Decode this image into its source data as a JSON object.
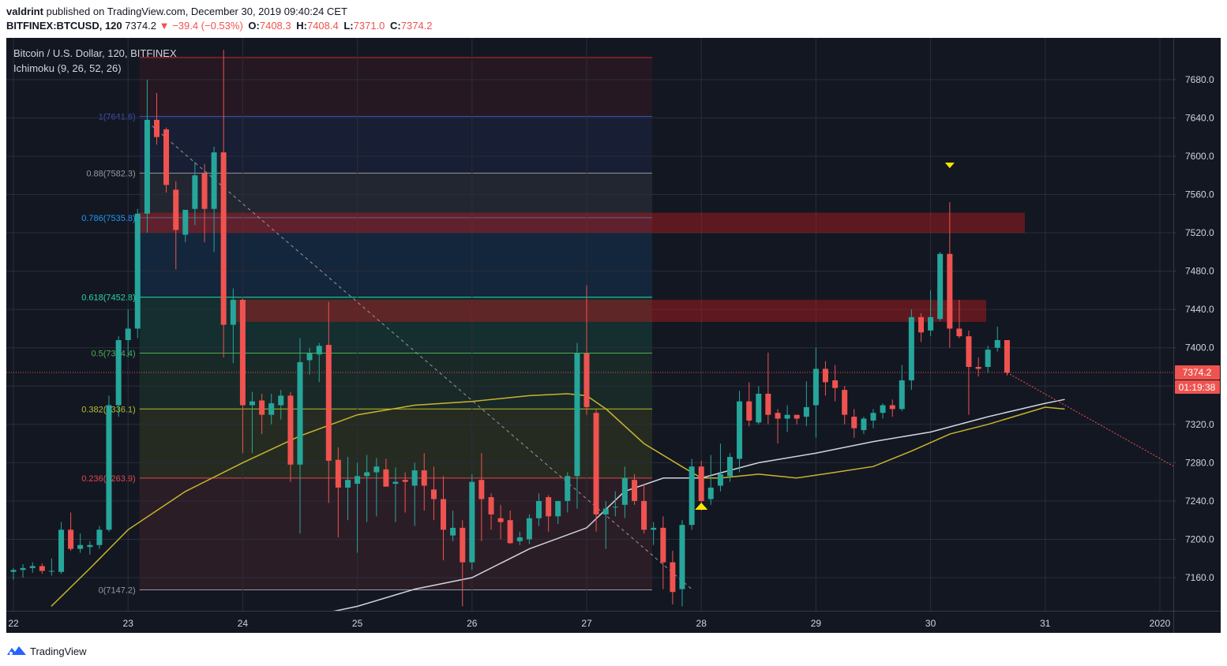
{
  "header": {
    "user": "valdrint",
    "published": "published on TradingView.com, December 30, 2019 09:40:24 CET",
    "symbol": "BITFINEX:BTCUSD, 120",
    "last": "7374.2",
    "change_arrow": "▼",
    "change": "−39.4 (−0.53%)",
    "o_label": "O:",
    "o": "7408.3",
    "h_label": "H:",
    "h": "7408.4",
    "l_label": "L:",
    "l": "7371.0",
    "c_label": "C:",
    "c": "7374.2"
  },
  "legend": {
    "title": "Bitcoin / U.S. Dollar, 120, BITFINEX",
    "indicator": "Ichimoku (9, 26, 52, 26)"
  },
  "footer": {
    "brand": "TradingView",
    "icon": "tradingview-logo-icon"
  },
  "colors": {
    "background": "#131722",
    "up": "#26a69a",
    "down": "#ef5350",
    "grid": "#2a2e39",
    "axis_text": "#d1d4dc",
    "ma_white": "#d1d4dc",
    "ma_yellow": "#c9b42c",
    "marker": "#ffe600"
  },
  "chart_data": {
    "type": "candlestick",
    "timeframe": "120",
    "x_labels": [
      "22",
      "23",
      "24",
      "25",
      "26",
      "27",
      "28",
      "29",
      "30",
      "31",
      "2020"
    ],
    "y_ticks": [
      7160,
      7200,
      7240,
      7280,
      7320,
      7360,
      7400,
      7440,
      7480,
      7520,
      7560,
      7600,
      7640,
      7680
    ],
    "y_tick_labels": [
      "7160.0",
      "7200.0",
      "7240.0",
      "7280.0",
      "7320.0",
      "7360.0",
      "7400.0",
      "7440.0",
      "7480.0",
      "7520.0",
      "7560.0",
      "7600.0",
      "7640.0",
      "7680.0"
    ],
    "ylim": [
      7120,
      7720
    ],
    "last_price": 7374.2,
    "last_price_label": "7374.2",
    "countdown": "01:19:38",
    "fib_levels": [
      {
        "ratio": "1",
        "price": 7641.6,
        "label": "1(7641.6)",
        "color": "#3f4fb8"
      },
      {
        "ratio": "0.88",
        "price": 7582.3,
        "label": "0.88(7582.3)",
        "color": "#9598a1"
      },
      {
        "ratio": "0.786",
        "price": 7535.8,
        "label": "0.786(7535.8)",
        "color": "#2196f3"
      },
      {
        "ratio": "0.618",
        "price": 7452.8,
        "label": "0.618(7452.8)",
        "color": "#26d8a0"
      },
      {
        "ratio": "0.5",
        "price": 7394.4,
        "label": "0.5(7394.4)",
        "color": "#4caf50"
      },
      {
        "ratio": "0.382",
        "price": 7336.1,
        "label": "0.382(7336.1)",
        "color": "#b5bd2c"
      },
      {
        "ratio": "0.236",
        "price": 7263.9,
        "label": "0.236(7263.9)",
        "color": "#e04848"
      },
      {
        "ratio": "0",
        "price": 7147.2,
        "label": "0(7147.2)",
        "color": "#9598a1"
      }
    ],
    "resistance_zones": [
      {
        "low": 7520,
        "high": 7541
      },
      {
        "low": 7427,
        "high": 7450
      }
    ],
    "candles": [
      {
        "t": 22.0,
        "o": 7166,
        "h": 7170,
        "l": 7158,
        "c": 7168
      },
      {
        "t": 22.083,
        "o": 7168,
        "h": 7174,
        "l": 7160,
        "c": 7170
      },
      {
        "t": 22.167,
        "o": 7170,
        "h": 7176,
        "l": 7165,
        "c": 7172
      },
      {
        "t": 22.25,
        "o": 7172,
        "h": 7175,
        "l": 7164,
        "c": 7167
      },
      {
        "t": 22.333,
        "o": 7167,
        "h": 7180,
        "l": 7162,
        "c": 7167
      },
      {
        "t": 22.417,
        "o": 7166,
        "h": 7218,
        "l": 7164,
        "c": 7210
      },
      {
        "t": 22.5,
        "o": 7210,
        "h": 7228,
        "l": 7188,
        "c": 7190
      },
      {
        "t": 22.583,
        "o": 7190,
        "h": 7206,
        "l": 7186,
        "c": 7194
      },
      {
        "t": 22.667,
        "o": 7192,
        "h": 7198,
        "l": 7184,
        "c": 7194
      },
      {
        "t": 22.75,
        "o": 7194,
        "h": 7214,
        "l": 7190,
        "c": 7210
      },
      {
        "t": 22.833,
        "o": 7210,
        "h": 7350,
        "l": 7208,
        "c": 7340
      },
      {
        "t": 22.917,
        "o": 7340,
        "h": 7412,
        "l": 7328,
        "c": 7408
      },
      {
        "t": 23.0,
        "o": 7408,
        "h": 7440,
        "l": 7390,
        "c": 7420
      },
      {
        "t": 23.083,
        "o": 7420,
        "h": 7545,
        "l": 7410,
        "c": 7540
      },
      {
        "t": 23.167,
        "o": 7540,
        "h": 7680,
        "l": 7520,
        "c": 7638
      },
      {
        "t": 23.25,
        "o": 7638,
        "h": 7666,
        "l": 7612,
        "c": 7620
      },
      {
        "t": 23.333,
        "o": 7628,
        "h": 7630,
        "l": 7562,
        "c": 7570
      },
      {
        "t": 23.417,
        "o": 7565,
        "h": 7574,
        "l": 7482,
        "c": 7523
      },
      {
        "t": 23.5,
        "o": 7518,
        "h": 7540,
        "l": 7510,
        "c": 7544
      },
      {
        "t": 23.583,
        "o": 7545,
        "h": 7594,
        "l": 7528,
        "c": 7580
      },
      {
        "t": 23.667,
        "o": 7582,
        "h": 7592,
        "l": 7510,
        "c": 7545
      },
      {
        "t": 23.75,
        "o": 7545,
        "h": 7610,
        "l": 7500,
        "c": 7604
      },
      {
        "t": 23.833,
        "o": 7604,
        "h": 7711,
        "l": 7390,
        "c": 7424
      },
      {
        "t": 23.917,
        "o": 7424,
        "h": 7462,
        "l": 7384,
        "c": 7450
      },
      {
        "t": 24.0,
        "o": 7450,
        "h": 7452,
        "l": 7290,
        "c": 7340
      },
      {
        "t": 24.083,
        "o": 7340,
        "h": 7354,
        "l": 7290,
        "c": 7344
      },
      {
        "t": 24.167,
        "o": 7345,
        "h": 7352,
        "l": 7310,
        "c": 7330
      },
      {
        "t": 24.25,
        "o": 7330,
        "h": 7352,
        "l": 7320,
        "c": 7342
      },
      {
        "t": 24.333,
        "o": 7340,
        "h": 7356,
        "l": 7325,
        "c": 7350
      },
      {
        "t": 24.417,
        "o": 7350,
        "h": 7354,
        "l": 7260,
        "c": 7278
      },
      {
        "t": 24.5,
        "o": 7278,
        "h": 7410,
        "l": 7206,
        "c": 7385
      },
      {
        "t": 24.583,
        "o": 7387,
        "h": 7400,
        "l": 7372,
        "c": 7394
      },
      {
        "t": 24.667,
        "o": 7393,
        "h": 7405,
        "l": 7364,
        "c": 7402
      },
      {
        "t": 24.75,
        "o": 7403,
        "h": 7448,
        "l": 7238,
        "c": 7282
      },
      {
        "t": 24.833,
        "o": 7283,
        "h": 7296,
        "l": 7202,
        "c": 7254
      },
      {
        "t": 24.917,
        "o": 7254,
        "h": 7286,
        "l": 7220,
        "c": 7262
      },
      {
        "t": 25.0,
        "o": 7258,
        "h": 7280,
        "l": 7186,
        "c": 7266
      },
      {
        "t": 25.083,
        "o": 7266,
        "h": 7288,
        "l": 7218,
        "c": 7270
      },
      {
        "t": 25.167,
        "o": 7270,
        "h": 7285,
        "l": 7224,
        "c": 7276
      },
      {
        "t": 25.25,
        "o": 7273,
        "h": 7284,
        "l": 7256,
        "c": 7255
      },
      {
        "t": 25.333,
        "o": 7258,
        "h": 7275,
        "l": 7218,
        "c": 7260
      },
      {
        "t": 25.417,
        "o": 7262,
        "h": 7270,
        "l": 7228,
        "c": 7260
      },
      {
        "t": 25.5,
        "o": 7256,
        "h": 7280,
        "l": 7214,
        "c": 7272
      },
      {
        "t": 25.583,
        "o": 7272,
        "h": 7290,
        "l": 7230,
        "c": 7256
      },
      {
        "t": 25.667,
        "o": 7252,
        "h": 7276,
        "l": 7220,
        "c": 7242
      },
      {
        "t": 25.75,
        "o": 7242,
        "h": 7266,
        "l": 7178,
        "c": 7210
      },
      {
        "t": 25.833,
        "o": 7204,
        "h": 7230,
        "l": 7198,
        "c": 7212
      },
      {
        "t": 25.917,
        "o": 7212,
        "h": 7220,
        "l": 7130,
        "c": 7176
      },
      {
        "t": 26.0,
        "o": 7176,
        "h": 7268,
        "l": 7168,
        "c": 7260
      },
      {
        "t": 26.083,
        "o": 7262,
        "h": 7290,
        "l": 7198,
        "c": 7242
      },
      {
        "t": 26.167,
        "o": 7244,
        "h": 7248,
        "l": 7210,
        "c": 7226
      },
      {
        "t": 26.25,
        "o": 7222,
        "h": 7236,
        "l": 7200,
        "c": 7218
      },
      {
        "t": 26.333,
        "o": 7220,
        "h": 7230,
        "l": 7195,
        "c": 7196
      },
      {
        "t": 26.417,
        "o": 7198,
        "h": 7208,
        "l": 7194,
        "c": 7202
      },
      {
        "t": 26.5,
        "o": 7200,
        "h": 7226,
        "l": 7195,
        "c": 7222
      },
      {
        "t": 26.583,
        "o": 7222,
        "h": 7248,
        "l": 7214,
        "c": 7240
      },
      {
        "t": 26.667,
        "o": 7244,
        "h": 7246,
        "l": 7208,
        "c": 7224
      },
      {
        "t": 26.75,
        "o": 7224,
        "h": 7238,
        "l": 7216,
        "c": 7240
      },
      {
        "t": 26.833,
        "o": 7240,
        "h": 7270,
        "l": 7228,
        "c": 7266
      },
      {
        "t": 26.917,
        "o": 7266,
        "h": 7405,
        "l": 7232,
        "c": 7394
      },
      {
        "t": 27.0,
        "o": 7394,
        "h": 7465,
        "l": 7330,
        "c": 7338
      },
      {
        "t": 27.083,
        "o": 7332,
        "h": 7336,
        "l": 7208,
        "c": 7226
      },
      {
        "t": 27.167,
        "o": 7226,
        "h": 7240,
        "l": 7190,
        "c": 7232
      },
      {
        "t": 27.25,
        "o": 7234,
        "h": 7250,
        "l": 7224,
        "c": 7234
      },
      {
        "t": 27.333,
        "o": 7236,
        "h": 7276,
        "l": 7222,
        "c": 7264
      },
      {
        "t": 27.417,
        "o": 7262,
        "h": 7268,
        "l": 7236,
        "c": 7240
      },
      {
        "t": 27.5,
        "o": 7240,
        "h": 7258,
        "l": 7206,
        "c": 7210
      },
      {
        "t": 27.583,
        "o": 7210,
        "h": 7218,
        "l": 7194,
        "c": 7212
      },
      {
        "t": 27.667,
        "o": 7212,
        "h": 7224,
        "l": 7148,
        "c": 7176
      },
      {
        "t": 27.75,
        "o": 7176,
        "h": 7188,
        "l": 7132,
        "c": 7145
      },
      {
        "t": 27.833,
        "o": 7148,
        "h": 7220,
        "l": 7130,
        "c": 7215
      },
      {
        "t": 27.917,
        "o": 7215,
        "h": 7284,
        "l": 7210,
        "c": 7276
      },
      {
        "t": 28.0,
        "o": 7276,
        "h": 7282,
        "l": 7230,
        "c": 7240
      },
      {
        "t": 28.083,
        "o": 7242,
        "h": 7288,
        "l": 7236,
        "c": 7254
      },
      {
        "t": 28.167,
        "o": 7256,
        "h": 7300,
        "l": 7250,
        "c": 7268
      },
      {
        "t": 28.25,
        "o": 7266,
        "h": 7290,
        "l": 7260,
        "c": 7286
      },
      {
        "t": 28.333,
        "o": 7284,
        "h": 7355,
        "l": 7270,
        "c": 7344
      },
      {
        "t": 28.417,
        "o": 7344,
        "h": 7364,
        "l": 7318,
        "c": 7324
      },
      {
        "t": 28.5,
        "o": 7322,
        "h": 7360,
        "l": 7320,
        "c": 7352
      },
      {
        "t": 28.583,
        "o": 7352,
        "h": 7395,
        "l": 7320,
        "c": 7330
      },
      {
        "t": 28.667,
        "o": 7332,
        "h": 7336,
        "l": 7300,
        "c": 7326
      },
      {
        "t": 28.75,
        "o": 7326,
        "h": 7340,
        "l": 7312,
        "c": 7330
      },
      {
        "t": 28.833,
        "o": 7330,
        "h": 7330,
        "l": 7320,
        "c": 7326
      },
      {
        "t": 28.917,
        "o": 7328,
        "h": 7365,
        "l": 7318,
        "c": 7338
      },
      {
        "t": 29.0,
        "o": 7340,
        "h": 7400,
        "l": 7306,
        "c": 7378
      },
      {
        "t": 29.083,
        "o": 7378,
        "h": 7386,
        "l": 7350,
        "c": 7364
      },
      {
        "t": 29.167,
        "o": 7366,
        "h": 7382,
        "l": 7344,
        "c": 7358
      },
      {
        "t": 29.25,
        "o": 7356,
        "h": 7360,
        "l": 7320,
        "c": 7330
      },
      {
        "t": 29.333,
        "o": 7328,
        "h": 7336,
        "l": 7306,
        "c": 7316
      },
      {
        "t": 29.417,
        "o": 7314,
        "h": 7328,
        "l": 7310,
        "c": 7326
      },
      {
        "t": 29.5,
        "o": 7324,
        "h": 7336,
        "l": 7316,
        "c": 7332
      },
      {
        "t": 29.583,
        "o": 7332,
        "h": 7342,
        "l": 7326,
        "c": 7340
      },
      {
        "t": 29.667,
        "o": 7340,
        "h": 7346,
        "l": 7328,
        "c": 7336
      },
      {
        "t": 29.75,
        "o": 7336,
        "h": 7382,
        "l": 7334,
        "c": 7366
      },
      {
        "t": 29.833,
        "o": 7366,
        "h": 7440,
        "l": 7356,
        "c": 7432
      },
      {
        "t": 29.917,
        "o": 7432,
        "h": 7436,
        "l": 7406,
        "c": 7416
      },
      {
        "t": 30.0,
        "o": 7418,
        "h": 7460,
        "l": 7412,
        "c": 7432
      },
      {
        "t": 30.083,
        "o": 7430,
        "h": 7500,
        "l": 7428,
        "c": 7498
      },
      {
        "t": 30.167,
        "o": 7498,
        "h": 7552,
        "l": 7400,
        "c": 7420
      },
      {
        "t": 30.25,
        "o": 7420,
        "h": 7450,
        "l": 7410,
        "c": 7412
      },
      {
        "t": 30.333,
        "o": 7412,
        "h": 7418,
        "l": 7330,
        "c": 7380
      },
      {
        "t": 30.417,
        "o": 7380,
        "h": 7390,
        "l": 7370,
        "c": 7378
      },
      {
        "t": 30.5,
        "o": 7380,
        "h": 7402,
        "l": 7374,
        "c": 7398
      },
      {
        "t": 30.583,
        "o": 7400,
        "h": 7422,
        "l": 7396,
        "c": 7408
      },
      {
        "t": 30.667,
        "o": 7408,
        "h": 7408,
        "l": 7371,
        "c": 7374
      }
    ],
    "lines": {
      "white_ma": [
        [
          24.6,
          7120
        ],
        [
          25.0,
          7130
        ],
        [
          25.5,
          7148
        ],
        [
          26.0,
          7160
        ],
        [
          26.5,
          7190
        ],
        [
          27.0,
          7212
        ],
        [
          27.33,
          7250
        ],
        [
          27.67,
          7264
        ],
        [
          28.0,
          7264
        ],
        [
          28.5,
          7280
        ],
        [
          29.0,
          7290
        ],
        [
          29.5,
          7302
        ],
        [
          30.0,
          7312
        ],
        [
          30.5,
          7328
        ],
        [
          31.0,
          7342
        ],
        [
          31.17,
          7346
        ]
      ],
      "yellow_ma": [
        [
          22.33,
          7130
        ],
        [
          22.67,
          7170
        ],
        [
          23.0,
          7210
        ],
        [
          23.5,
          7250
        ],
        [
          24.0,
          7280
        ],
        [
          24.5,
          7308
        ],
        [
          25.0,
          7330
        ],
        [
          25.5,
          7340
        ],
        [
          26.0,
          7344
        ],
        [
          26.5,
          7350
        ],
        [
          26.83,
          7352
        ],
        [
          27.0,
          7350
        ],
        [
          27.17,
          7336
        ],
        [
          27.5,
          7300
        ],
        [
          27.83,
          7276
        ],
        [
          28.0,
          7264
        ],
        [
          28.17,
          7264
        ],
        [
          28.5,
          7268
        ],
        [
          28.83,
          7264
        ],
        [
          29.17,
          7270
        ],
        [
          29.5,
          7276
        ],
        [
          29.83,
          7292
        ],
        [
          30.17,
          7310
        ],
        [
          30.5,
          7320
        ],
        [
          31.0,
          7338
        ],
        [
          31.17,
          7336
        ]
      ]
    },
    "diagonal_dashed": {
      "from": [
        23.167,
        7636
      ],
      "to": [
        27.917,
        7148
      ]
    },
    "projection_arrow": {
      "from": [
        30.667,
        7374
      ],
      "to": [
        33.167,
        7206
      ]
    },
    "markers": [
      {
        "type": "sell-arrow",
        "t": 30.167,
        "price": 7590
      },
      {
        "type": "buy-arrow",
        "t": 28.0,
        "price": 7235
      }
    ]
  }
}
